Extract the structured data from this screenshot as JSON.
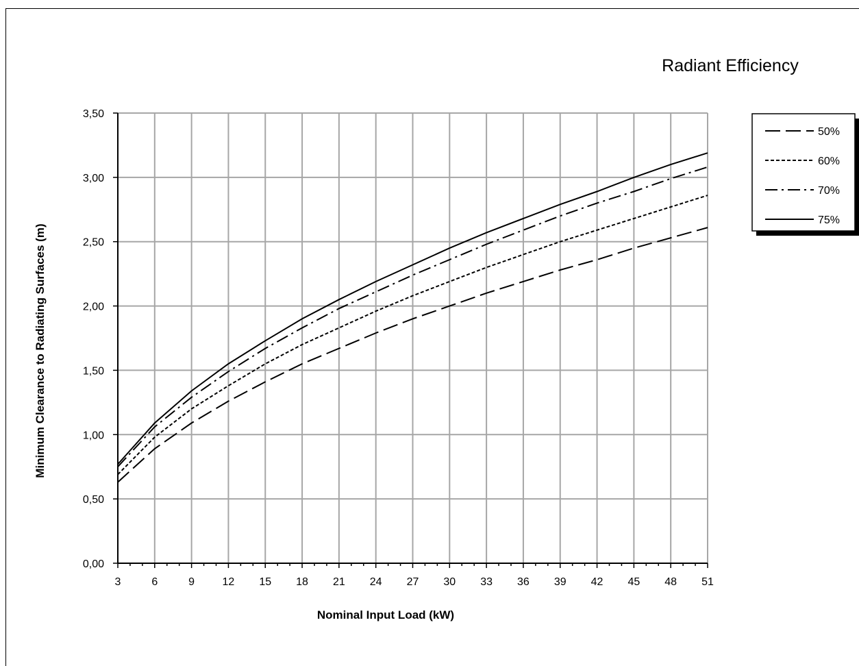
{
  "chart_data": {
    "type": "line",
    "title": "",
    "xlabel": "Nominal Input Load (kW)",
    "ylabel": "Minimum Clearance to Radiating Surfaces (m)",
    "legend_title": "Radiant Efficiency",
    "legend_position": "right",
    "grid": true,
    "xlim": [
      3,
      51
    ],
    "ylim": [
      0,
      3.5
    ],
    "x_ticks": [
      "3",
      "6",
      "9",
      "12",
      "15",
      "18",
      "21",
      "24",
      "27",
      "30",
      "33",
      "36",
      "39",
      "42",
      "45",
      "48",
      "51"
    ],
    "y_ticks": [
      "0,00",
      "0,50",
      "1,00",
      "1,50",
      "2,00",
      "2,50",
      "3,00",
      "3,50"
    ],
    "x": [
      3,
      6,
      9,
      12,
      15,
      18,
      21,
      24,
      27,
      30,
      33,
      36,
      39,
      42,
      45,
      48,
      51
    ],
    "series": [
      {
        "name": "50%",
        "dash": "22,8",
        "values": [
          0.63,
          0.89,
          1.09,
          1.26,
          1.41,
          1.55,
          1.67,
          1.79,
          1.9,
          2.0,
          2.1,
          2.19,
          2.28,
          2.36,
          2.45,
          2.53,
          2.61
        ]
      },
      {
        "name": "60%",
        "dash": "5,3",
        "values": [
          0.69,
          0.98,
          1.2,
          1.38,
          1.55,
          1.7,
          1.83,
          1.96,
          2.08,
          2.19,
          2.3,
          2.4,
          2.5,
          2.59,
          2.68,
          2.77,
          2.86
        ]
      },
      {
        "name": "70%",
        "dash": "18,6,3,6",
        "values": [
          0.75,
          1.06,
          1.29,
          1.49,
          1.67,
          1.83,
          1.98,
          2.11,
          2.24,
          2.36,
          2.48,
          2.59,
          2.7,
          2.8,
          2.89,
          2.99,
          3.08
        ]
      },
      {
        "name": "75%",
        "dash": "",
        "values": [
          0.77,
          1.09,
          1.34,
          1.55,
          1.73,
          1.9,
          2.05,
          2.19,
          2.32,
          2.45,
          2.57,
          2.68,
          2.79,
          2.89,
          3.0,
          3.1,
          3.19
        ]
      }
    ],
    "line_color": "#000000",
    "grid_color": "#a6a6a6"
  }
}
